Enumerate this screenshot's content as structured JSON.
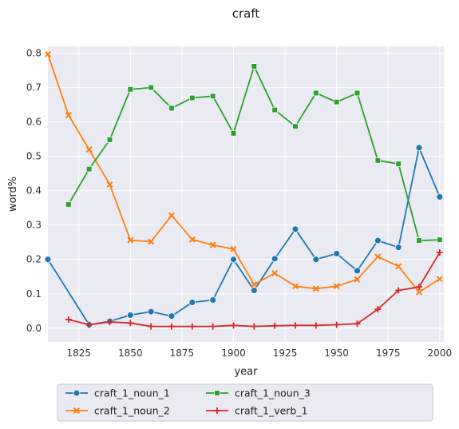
{
  "chart_data": {
    "type": "line",
    "title": "craft",
    "xlabel": "year",
    "ylabel": "word%",
    "xlim": [
      1810,
      2002
    ],
    "ylim": [
      -0.04,
      0.82
    ],
    "xticks": [
      1825,
      1850,
      1875,
      1900,
      1925,
      1950,
      1975,
      2000
    ],
    "yticks": [
      0.0,
      0.1,
      0.2,
      0.3,
      0.4,
      0.5,
      0.6,
      0.7,
      0.8
    ],
    "xtick_labels": [
      "1825",
      "1850",
      "1875",
      "1900",
      "1925",
      "1950",
      "1975",
      "2000"
    ],
    "ytick_labels": [
      "0.0",
      "0.1",
      "0.2",
      "0.3",
      "0.4",
      "0.5",
      "0.6",
      "0.7",
      "0.8"
    ],
    "grid": true,
    "legend_position": "bottom-center",
    "series": [
      {
        "name": "craft_1_noun_1",
        "color": "#1f77b4",
        "marker": "circle",
        "x": [
          1810,
          1830,
          1840,
          1850,
          1860,
          1870,
          1880,
          1890,
          1900,
          1910,
          1920,
          1930,
          1940,
          1950,
          1960,
          1970,
          1980,
          1990,
          2000
        ],
        "y": [
          0.2,
          0.01,
          0.02,
          0.038,
          0.048,
          0.035,
          0.075,
          0.082,
          0.2,
          0.11,
          0.202,
          0.288,
          0.2,
          0.217,
          0.167,
          0.255,
          0.235,
          0.525,
          0.382
        ]
      },
      {
        "name": "craft_1_noun_2",
        "color": "#ff7f0e",
        "marker": "x",
        "x": [
          1810,
          1820,
          1830,
          1840,
          1850,
          1860,
          1870,
          1880,
          1890,
          1900,
          1910,
          1920,
          1930,
          1940,
          1950,
          1960,
          1970,
          1980,
          1990,
          2000
        ],
        "y": [
          0.797,
          0.62,
          0.52,
          0.418,
          0.256,
          0.252,
          0.328,
          0.258,
          0.242,
          0.23,
          0.127,
          0.16,
          0.122,
          0.115,
          0.122,
          0.142,
          0.208,
          0.18,
          0.105,
          0.143
        ]
      },
      {
        "name": "craft_1_noun_3",
        "color": "#2ca02c",
        "marker": "square",
        "x": [
          1820,
          1830,
          1840,
          1850,
          1860,
          1870,
          1880,
          1890,
          1900,
          1910,
          1920,
          1930,
          1940,
          1950,
          1960,
          1970,
          1980,
          1990,
          2000
        ],
        "y": [
          0.36,
          0.463,
          0.548,
          0.695,
          0.7,
          0.64,
          0.67,
          0.675,
          0.567,
          0.762,
          0.635,
          0.587,
          0.684,
          0.658,
          0.684,
          0.488,
          0.478,
          0.255,
          0.257
        ]
      },
      {
        "name": "craft_1_verb_1",
        "color": "#d62728",
        "marker": "plus",
        "x": [
          1820,
          1830,
          1840,
          1850,
          1860,
          1870,
          1880,
          1890,
          1900,
          1910,
          1920,
          1930,
          1940,
          1950,
          1960,
          1970,
          1980,
          1990,
          2000
        ],
        "y": [
          0.025,
          0.01,
          0.018,
          0.015,
          0.005,
          0.005,
          0.005,
          0.005,
          0.008,
          0.005,
          0.007,
          0.008,
          0.008,
          0.01,
          0.013,
          0.055,
          0.11,
          0.12,
          0.22
        ]
      }
    ]
  }
}
